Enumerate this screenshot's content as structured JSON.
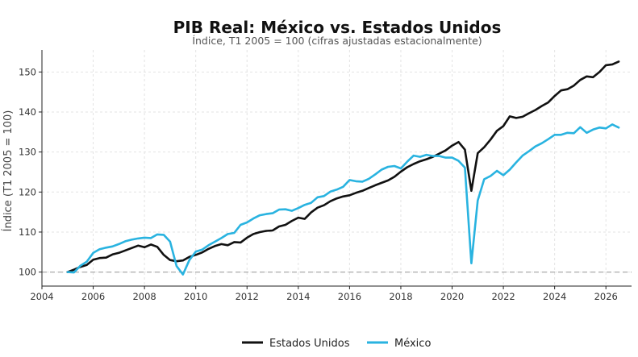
{
  "chart_data": {
    "type": "line",
    "title": "PIB Real: México vs. Estados Unidos",
    "subtitle": "Índice, T1 2005 = 100 (cifras ajustadas estacionalmente)",
    "xlabel": "",
    "ylabel": "Índice (T1 2005 = 100)",
    "xlim": [
      2004,
      2027
    ],
    "ylim": [
      96.5,
      155.5
    ],
    "xticks": [
      2004,
      2006,
      2008,
      2010,
      2012,
      2014,
      2016,
      2018,
      2020,
      2022,
      2024,
      2026
    ],
    "yticks": [
      100,
      110,
      120,
      130,
      140,
      150
    ],
    "grid": true,
    "legend": "bottom-center",
    "reference_line": {
      "y": 100,
      "style": "dashed",
      "color": "#aaaaaa"
    },
    "series": [
      {
        "name": "Estados Unidos",
        "color": "#111111",
        "points": [
          [
            2005.0,
            100.0
          ],
          [
            2005.25,
            100.6
          ],
          [
            2005.5,
            101.3
          ],
          [
            2005.75,
            101.8
          ],
          [
            2006.0,
            103.1
          ],
          [
            2006.25,
            103.5
          ],
          [
            2006.5,
            103.6
          ],
          [
            2006.75,
            104.4
          ],
          [
            2007.0,
            104.8
          ],
          [
            2007.25,
            105.4
          ],
          [
            2007.5,
            106.0
          ],
          [
            2007.75,
            106.6
          ],
          [
            2008.0,
            106.2
          ],
          [
            2008.25,
            106.9
          ],
          [
            2008.5,
            106.3
          ],
          [
            2008.75,
            104.3
          ],
          [
            2009.0,
            103.0
          ],
          [
            2009.25,
            102.7
          ],
          [
            2009.5,
            102.9
          ],
          [
            2009.75,
            103.8
          ],
          [
            2010.0,
            104.3
          ],
          [
            2010.25,
            104.9
          ],
          [
            2010.5,
            105.8
          ],
          [
            2010.75,
            106.5
          ],
          [
            2011.0,
            107.0
          ],
          [
            2011.25,
            106.7
          ],
          [
            2011.5,
            107.5
          ],
          [
            2011.75,
            107.4
          ],
          [
            2012.0,
            108.6
          ],
          [
            2012.25,
            109.5
          ],
          [
            2012.5,
            110.0
          ],
          [
            2012.75,
            110.3
          ],
          [
            2013.0,
            110.4
          ],
          [
            2013.25,
            111.4
          ],
          [
            2013.5,
            111.8
          ],
          [
            2013.75,
            112.8
          ],
          [
            2014.0,
            113.6
          ],
          [
            2014.25,
            113.3
          ],
          [
            2014.5,
            114.9
          ],
          [
            2014.75,
            116.1
          ],
          [
            2015.0,
            116.7
          ],
          [
            2015.25,
            117.7
          ],
          [
            2015.5,
            118.4
          ],
          [
            2015.75,
            118.9
          ],
          [
            2016.0,
            119.2
          ],
          [
            2016.25,
            119.8
          ],
          [
            2016.5,
            120.3
          ],
          [
            2016.75,
            121.0
          ],
          [
            2017.0,
            121.7
          ],
          [
            2017.25,
            122.3
          ],
          [
            2017.5,
            122.9
          ],
          [
            2017.75,
            123.8
          ],
          [
            2018.0,
            125.1
          ],
          [
            2018.25,
            126.2
          ],
          [
            2018.5,
            127.0
          ],
          [
            2018.75,
            127.7
          ],
          [
            2019.0,
            128.2
          ],
          [
            2019.25,
            128.8
          ],
          [
            2019.5,
            129.6
          ],
          [
            2019.75,
            130.4
          ],
          [
            2020.0,
            131.6
          ],
          [
            2020.25,
            132.5
          ],
          [
            2020.5,
            130.6
          ],
          [
            2020.75,
            120.3
          ],
          [
            2021.0,
            129.7
          ],
          [
            2021.25,
            131.2
          ],
          [
            2021.5,
            133.1
          ],
          [
            2021.75,
            135.3
          ],
          [
            2022.0,
            136.5
          ],
          [
            2022.25,
            138.9
          ],
          [
            2022.5,
            138.5
          ],
          [
            2022.75,
            138.8
          ],
          [
            2023.0,
            139.7
          ],
          [
            2023.25,
            140.5
          ],
          [
            2023.5,
            141.5
          ],
          [
            2023.75,
            142.4
          ],
          [
            2024.0,
            144.0
          ],
          [
            2024.25,
            145.4
          ],
          [
            2024.5,
            145.7
          ],
          [
            2024.75,
            146.6
          ],
          [
            2025.0,
            148.0
          ],
          [
            2025.25,
            148.9
          ],
          [
            2025.5,
            148.7
          ],
          [
            2025.75,
            150.0
          ],
          [
            2026.0,
            151.7
          ],
          [
            2026.25,
            151.9
          ],
          [
            2026.5,
            152.6
          ]
        ]
      },
      {
        "name": "México",
        "color": "#29b3e0",
        "points": [
          [
            2005.0,
            100.0
          ],
          [
            2005.25,
            99.9
          ],
          [
            2005.5,
            101.6
          ],
          [
            2005.75,
            102.6
          ],
          [
            2006.0,
            104.8
          ],
          [
            2006.25,
            105.7
          ],
          [
            2006.5,
            106.1
          ],
          [
            2006.75,
            106.4
          ],
          [
            2007.0,
            107.0
          ],
          [
            2007.25,
            107.7
          ],
          [
            2007.5,
            108.1
          ],
          [
            2007.75,
            108.4
          ],
          [
            2008.0,
            108.6
          ],
          [
            2008.25,
            108.5
          ],
          [
            2008.5,
            109.4
          ],
          [
            2008.75,
            109.3
          ],
          [
            2009.0,
            107.6
          ],
          [
            2009.25,
            101.5
          ],
          [
            2009.5,
            99.4
          ],
          [
            2009.75,
            103.0
          ],
          [
            2010.0,
            105.1
          ],
          [
            2010.25,
            105.6
          ],
          [
            2010.5,
            106.7
          ],
          [
            2010.75,
            107.6
          ],
          [
            2011.0,
            108.5
          ],
          [
            2011.25,
            109.5
          ],
          [
            2011.5,
            109.8
          ],
          [
            2011.75,
            111.8
          ],
          [
            2012.0,
            112.4
          ],
          [
            2012.25,
            113.4
          ],
          [
            2012.5,
            114.2
          ],
          [
            2012.75,
            114.5
          ],
          [
            2013.0,
            114.7
          ],
          [
            2013.25,
            115.6
          ],
          [
            2013.5,
            115.7
          ],
          [
            2013.75,
            115.3
          ],
          [
            2014.0,
            116.0
          ],
          [
            2014.25,
            116.8
          ],
          [
            2014.5,
            117.3
          ],
          [
            2014.75,
            118.7
          ],
          [
            2015.0,
            119.0
          ],
          [
            2015.25,
            120.1
          ],
          [
            2015.5,
            120.6
          ],
          [
            2015.75,
            121.3
          ],
          [
            2016.0,
            123.0
          ],
          [
            2016.25,
            122.7
          ],
          [
            2016.5,
            122.6
          ],
          [
            2016.75,
            123.3
          ],
          [
            2017.0,
            124.4
          ],
          [
            2017.25,
            125.6
          ],
          [
            2017.5,
            126.3
          ],
          [
            2017.75,
            126.5
          ],
          [
            2018.0,
            125.9
          ],
          [
            2018.25,
            127.6
          ],
          [
            2018.5,
            129.1
          ],
          [
            2018.75,
            128.8
          ],
          [
            2019.0,
            129.3
          ],
          [
            2019.25,
            129.0
          ],
          [
            2019.5,
            129.0
          ],
          [
            2019.75,
            128.6
          ],
          [
            2020.0,
            128.6
          ],
          [
            2020.25,
            127.8
          ],
          [
            2020.5,
            126.1
          ],
          [
            2020.75,
            102.2
          ],
          [
            2021.0,
            117.9
          ],
          [
            2021.25,
            123.2
          ],
          [
            2021.5,
            124.0
          ],
          [
            2021.75,
            125.3
          ],
          [
            2022.0,
            124.2
          ],
          [
            2022.25,
            125.6
          ],
          [
            2022.5,
            127.4
          ],
          [
            2022.75,
            129.1
          ],
          [
            2023.0,
            130.2
          ],
          [
            2023.25,
            131.4
          ],
          [
            2023.5,
            132.2
          ],
          [
            2023.75,
            133.2
          ],
          [
            2024.0,
            134.3
          ],
          [
            2024.25,
            134.3
          ],
          [
            2024.5,
            134.8
          ],
          [
            2024.75,
            134.7
          ],
          [
            2025.0,
            136.2
          ],
          [
            2025.25,
            134.8
          ],
          [
            2025.5,
            135.6
          ],
          [
            2025.75,
            136.1
          ],
          [
            2026.0,
            135.9
          ],
          [
            2026.25,
            136.9
          ],
          [
            2026.5,
            136.1
          ]
        ]
      }
    ]
  }
}
